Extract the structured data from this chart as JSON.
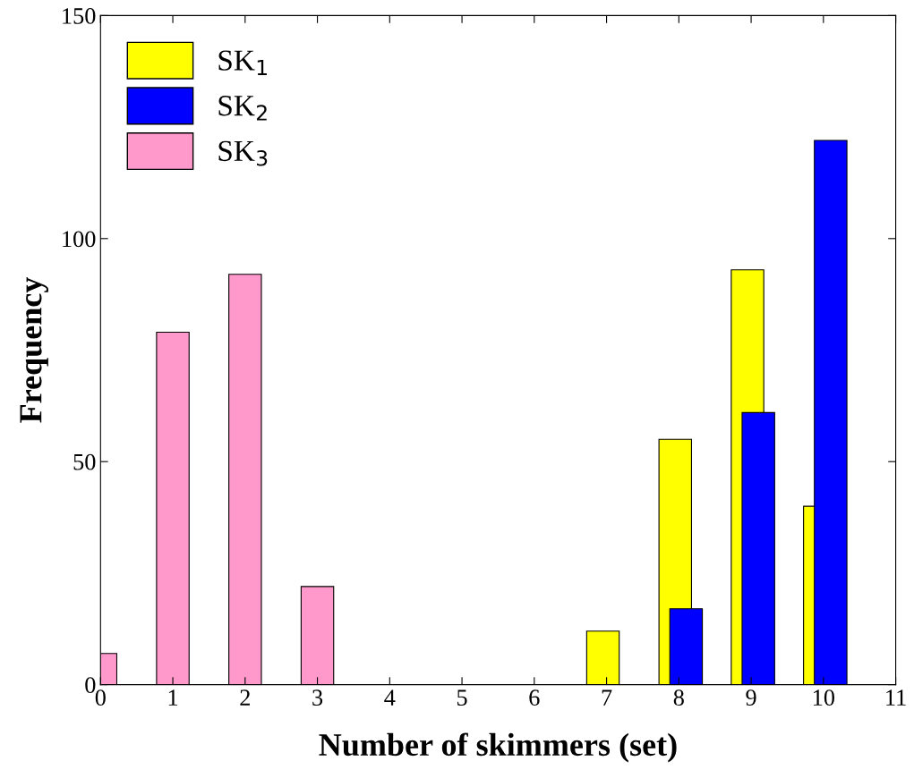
{
  "chart_data": {
    "type": "bar",
    "xlabel": "Number of skimmers (set)",
    "ylabel": "Frequency",
    "x": [
      0,
      1,
      2,
      3,
      4,
      5,
      6,
      7,
      8,
      9,
      10
    ],
    "series": [
      {
        "name": "SK$_{1}$",
        "color": "#ffff00",
        "values": [
          null,
          null,
          null,
          null,
          null,
          null,
          null,
          12,
          55,
          93,
          40
        ]
      },
      {
        "name": "SK$_{2}$",
        "color": "#0000ff",
        "values": [
          null,
          null,
          null,
          null,
          null,
          null,
          null,
          null,
          17,
          61,
          122
        ]
      },
      {
        "name": "SK$_{3}$",
        "color": "#ff99cc",
        "values": [
          7,
          79,
          92,
          22,
          null,
          null,
          null,
          null,
          null,
          null,
          null
        ]
      }
    ],
    "xlim": [
      0,
      11
    ],
    "xticks": [
      0,
      1,
      2,
      3,
      4,
      5,
      6,
      7,
      8,
      9,
      10,
      11
    ],
    "ylim": [
      0,
      150
    ],
    "yticks": [
      0,
      50,
      100,
      150
    ],
    "grid": false,
    "legend": "top left"
  }
}
